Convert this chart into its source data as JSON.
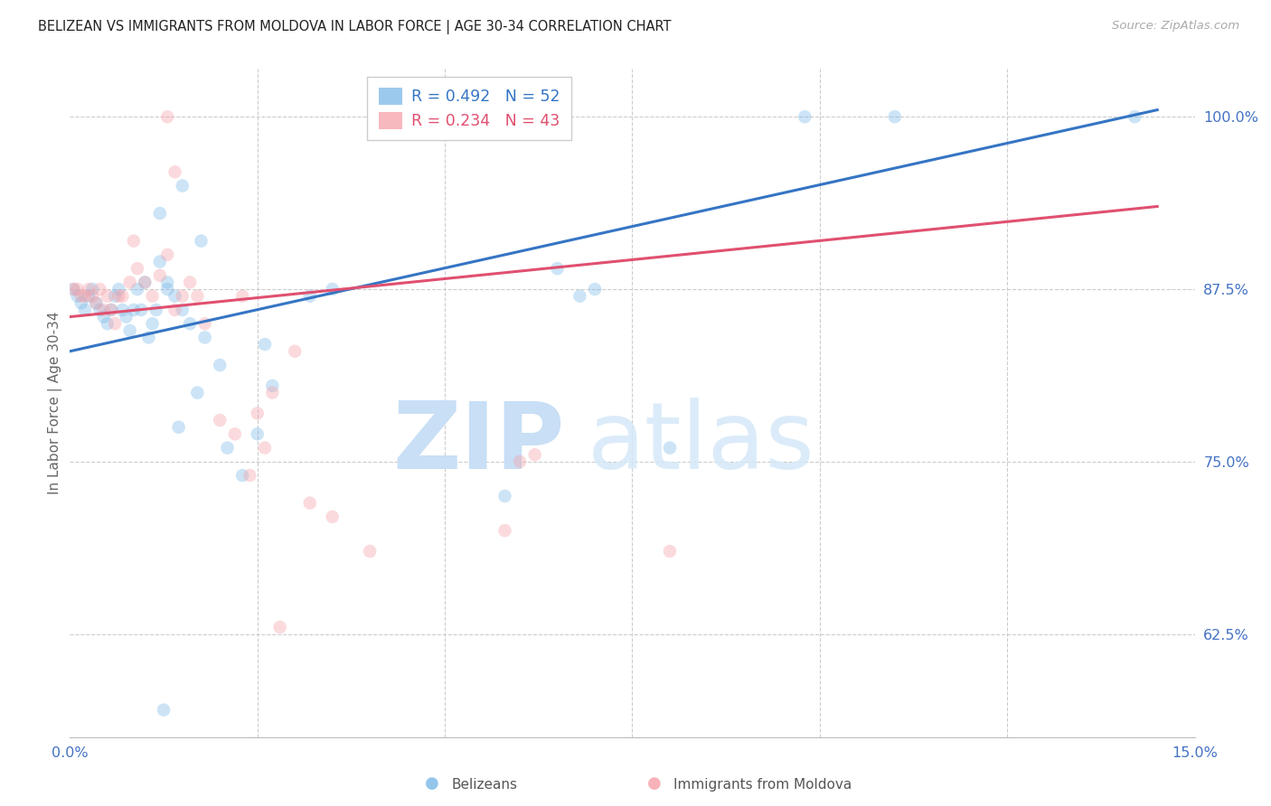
{
  "title": "BELIZEAN VS IMMIGRANTS FROM MOLDOVA IN LABOR FORCE | AGE 30-34 CORRELATION CHART",
  "source": "Source: ZipAtlas.com",
  "ylabel": "In Labor Force | Age 30-34",
  "xlim": [
    0.0,
    15.0
  ],
  "ylim": [
    55.0,
    103.5
  ],
  "yticks": [
    62.5,
    75.0,
    87.5,
    100.0
  ],
  "ytick_labels": [
    "62.5%",
    "75.0%",
    "87.5%",
    "100.0%"
  ],
  "xtick_vals": [
    0.0,
    15.0
  ],
  "xtick_labels": [
    "0.0%",
    "15.0%"
  ],
  "legend_blue": "R = 0.492   N = 52",
  "legend_pink": "R = 0.234   N = 43",
  "blue_color": "#7ab8e8",
  "pink_color": "#f5a0a8",
  "blue_line_color": "#3575c4",
  "pink_line_color": "#e05070",
  "blue_trend_x": [
    0.0,
    14.5
  ],
  "blue_trend_y": [
    83.0,
    100.5
  ],
  "pink_trend_x": [
    0.0,
    14.5
  ],
  "pink_trend_y": [
    85.5,
    93.5
  ],
  "blue_x": [
    1.2,
    1.5,
    1.75,
    0.05,
    0.1,
    0.15,
    0.2,
    0.25,
    0.3,
    0.35,
    0.4,
    0.45,
    0.5,
    0.55,
    0.6,
    0.65,
    0.7,
    0.75,
    0.8,
    0.85,
    0.9,
    0.95,
    1.0,
    1.05,
    1.1,
    1.15,
    1.2,
    1.3,
    1.4,
    1.5,
    1.6,
    1.7,
    1.8,
    2.0,
    2.1,
    2.3,
    2.5,
    2.7,
    1.45,
    9.8,
    11.0,
    14.2,
    6.5,
    6.8,
    7.0,
    8.0,
    3.5,
    1.25,
    2.6,
    3.2,
    5.8,
    1.3
  ],
  "blue_y": [
    93.0,
    95.0,
    91.0,
    87.5,
    87.0,
    86.5,
    86.0,
    87.0,
    87.5,
    86.5,
    86.0,
    85.5,
    85.0,
    86.0,
    87.0,
    87.5,
    86.0,
    85.5,
    84.5,
    86.0,
    87.5,
    86.0,
    88.0,
    84.0,
    85.0,
    86.0,
    89.5,
    88.0,
    87.0,
    86.0,
    85.0,
    80.0,
    84.0,
    82.0,
    76.0,
    74.0,
    77.0,
    80.5,
    77.5,
    100.0,
    100.0,
    100.0,
    89.0,
    87.0,
    87.5,
    76.0,
    87.5,
    57.0,
    83.5,
    87.0,
    72.5,
    87.5
  ],
  "pink_x": [
    1.3,
    1.4,
    0.05,
    0.1,
    0.15,
    0.2,
    0.25,
    0.3,
    0.35,
    0.4,
    0.45,
    0.5,
    0.55,
    0.6,
    0.65,
    0.7,
    0.8,
    0.85,
    0.9,
    1.0,
    1.1,
    1.2,
    1.3,
    1.4,
    1.5,
    1.6,
    1.7,
    1.8,
    2.0,
    2.2,
    2.3,
    2.4,
    2.5,
    2.6,
    2.7,
    3.0,
    3.2,
    3.5,
    4.0,
    5.8,
    6.0,
    6.2,
    8.0
  ],
  "pink_y": [
    100.0,
    96.0,
    87.5,
    87.5,
    87.0,
    87.0,
    87.5,
    87.0,
    86.5,
    87.5,
    86.0,
    87.0,
    86.0,
    85.0,
    87.0,
    87.0,
    88.0,
    91.0,
    89.0,
    88.0,
    87.0,
    88.5,
    90.0,
    86.0,
    87.0,
    88.0,
    87.0,
    85.0,
    78.0,
    77.0,
    87.0,
    74.0,
    78.5,
    76.0,
    80.0,
    83.0,
    72.0,
    71.0,
    68.5,
    70.0,
    75.0,
    75.5,
    68.5
  ],
  "pink_outlier_x": [
    2.8
  ],
  "pink_outlier_y": [
    63.0
  ],
  "grid_color": "#cccccc",
  "bg_color": "#ffffff",
  "title_color": "#222222",
  "axis_label_color": "#4472c4",
  "ylabel_color": "#666666",
  "marker_size": 110,
  "marker_alpha": 0.38,
  "bottom_legend_blue": "Belizeans",
  "bottom_legend_pink": "Immigrants from Moldova"
}
